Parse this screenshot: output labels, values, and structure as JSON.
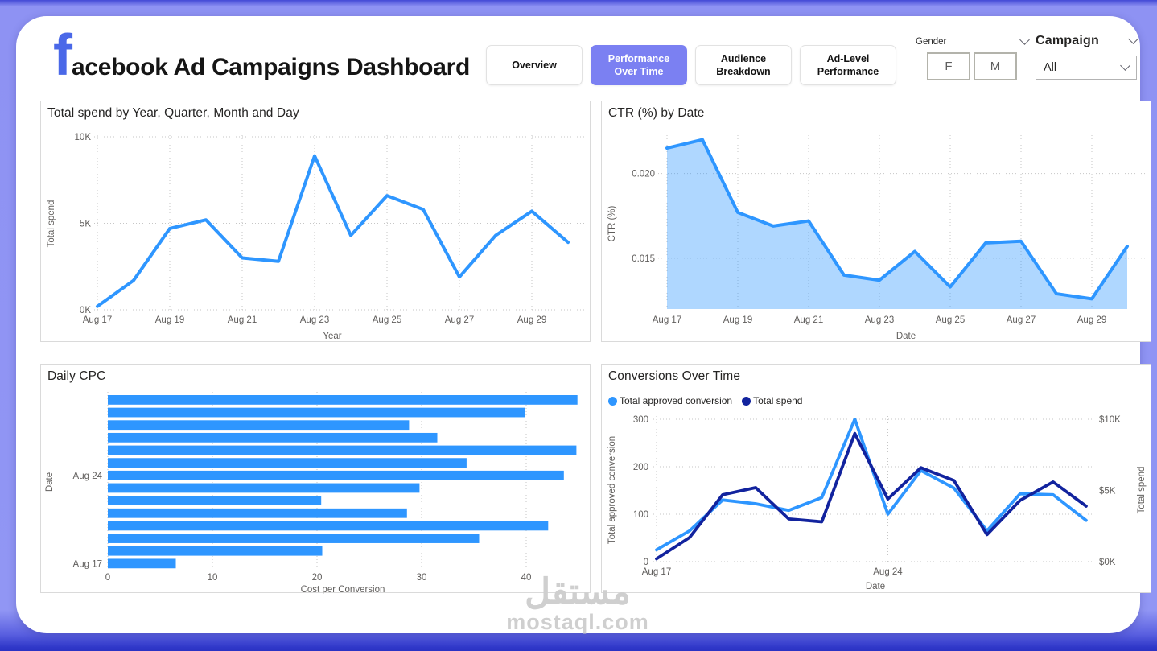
{
  "header": {
    "logo_letter": "f",
    "title": "acebook Ad Campaigns Dashboard",
    "nav": [
      {
        "label": "Overview",
        "active": false
      },
      {
        "label": "Performance Over Time",
        "active": true
      },
      {
        "label": "Audience Breakdown",
        "active": false
      },
      {
        "label": "Ad-Level Performance",
        "active": false
      }
    ],
    "filters": {
      "gender": {
        "label": "Gender",
        "options": [
          "F",
          "M"
        ]
      },
      "campaign": {
        "label": "Campaign",
        "value": "All"
      }
    }
  },
  "colors": {
    "accent_purple": "#7B80F2",
    "primary_blue": "#2E96FF",
    "secondary_navy": "#12239E",
    "logo_blue": "#4A68E8",
    "area_fill": "#A8D4FF"
  },
  "watermark": {
    "arabic": "مستقل",
    "latin": "mostaql.com"
  },
  "chart_data": [
    {
      "id": "total-spend-by-day",
      "type": "line",
      "title": "Total spend by Year, Quarter, Month and Day",
      "xlabel": "Year",
      "ylabel": "Total spend",
      "categories": [
        "Aug 17",
        "Aug 18",
        "Aug 19",
        "Aug 20",
        "Aug 21",
        "Aug 22",
        "Aug 23",
        "Aug 24",
        "Aug 25",
        "Aug 26",
        "Aug 27",
        "Aug 28",
        "Aug 29",
        "Aug 30"
      ],
      "values_k": [
        0.2,
        1.7,
        4.7,
        5.2,
        3.0,
        2.8,
        8.9,
        4.3,
        6.6,
        5.8,
        1.9,
        4.3,
        5.7,
        3.9
      ],
      "ylim_k": [
        0,
        10
      ],
      "y_ticks": [
        {
          "v": 0,
          "label": "0K"
        },
        {
          "v": 5,
          "label": "5K"
        },
        {
          "v": 10,
          "label": "10K"
        }
      ],
      "x_ticks_every": 2,
      "line_color": "#2E96FF",
      "grid": true,
      "legend_position": "none"
    },
    {
      "id": "ctr-by-date",
      "type": "area",
      "title": "CTR (%) by Date",
      "xlabel": "Date",
      "ylabel": "CTR (%)",
      "categories": [
        "Aug 17",
        "Aug 18",
        "Aug 19",
        "Aug 20",
        "Aug 21",
        "Aug 22",
        "Aug 23",
        "Aug 24",
        "Aug 25",
        "Aug 26",
        "Aug 27",
        "Aug 28",
        "Aug 29",
        "Aug 30"
      ],
      "values": [
        0.0215,
        0.022,
        0.0177,
        0.0169,
        0.0172,
        0.014,
        0.0137,
        0.0154,
        0.0133,
        0.0159,
        0.016,
        0.0129,
        0.0126,
        0.0157
      ],
      "ylim": [
        0.012,
        0.0225
      ],
      "y_ticks": [
        {
          "v": 0.015,
          "label": "0.015"
        },
        {
          "v": 0.02,
          "label": "0.020"
        }
      ],
      "x_ticks_every": 2,
      "line_color": "#2E96FF",
      "fill_color": "#2E96FF",
      "fill_opacity": 0.38,
      "grid": true,
      "legend_position": "none"
    },
    {
      "id": "daily-cpc",
      "type": "bar",
      "orientation": "horizontal",
      "title": "Daily CPC",
      "xlabel": "Cost per Conversion",
      "ylabel": "Date",
      "categories_top_to_bottom": [
        "Aug 30",
        "Aug 29",
        "Aug 28",
        "Aug 27",
        "Aug 26",
        "Aug 25",
        "Aug 24",
        "Aug 23",
        "Aug 22",
        "Aug 21",
        "Aug 20",
        "Aug 19",
        "Aug 18",
        "Aug 17"
      ],
      "values": [
        44.9,
        39.9,
        28.8,
        31.5,
        44.8,
        34.3,
        43.6,
        29.8,
        20.4,
        28.6,
        42.1,
        35.5,
        20.5,
        6.5
      ],
      "xlim": [
        0,
        45.5
      ],
      "x_ticks": [
        {
          "v": 0,
          "label": "0"
        },
        {
          "v": 10,
          "label": "10"
        },
        {
          "v": 20,
          "label": "20"
        },
        {
          "v": 30,
          "label": "30"
        },
        {
          "v": 40,
          "label": "40"
        }
      ],
      "visible_y_tick_labels": [
        {
          "row_index": 6,
          "label": "Aug 24"
        },
        {
          "row_index": 13,
          "label": "Aug 17"
        }
      ],
      "bar_color": "#2E96FF",
      "grid": true,
      "legend_position": "none"
    },
    {
      "id": "conversions-over-time",
      "type": "line",
      "dual_axis": true,
      "title": "Conversions Over Time",
      "xlabel": "Date",
      "ylabel_left": "Total approved conversion",
      "ylabel_right": "Total spend",
      "categories": [
        "Aug 17",
        "Aug 18",
        "Aug 19",
        "Aug 20",
        "Aug 21",
        "Aug 22",
        "Aug 23",
        "Aug 24",
        "Aug 25",
        "Aug 26",
        "Aug 27",
        "Aug 28",
        "Aug 29",
        "Aug 30"
      ],
      "series": [
        {
          "name": "Total approved conversion",
          "axis": "left",
          "color": "#2E96FF",
          "values": [
            25,
            65,
            130,
            122,
            108,
            135,
            300,
            100,
            192,
            155,
            65,
            143,
            141,
            87
          ]
        },
        {
          "name": "Total spend",
          "axis": "right",
          "color": "#12239E",
          "values_k": [
            0.2,
            1.7,
            4.7,
            5.2,
            3.0,
            2.8,
            9.0,
            4.4,
            6.6,
            5.7,
            1.9,
            4.3,
            5.6,
            3.9
          ]
        }
      ],
      "left_ylim": [
        0,
        300
      ],
      "left_ticks": [
        {
          "v": 0,
          "label": "0"
        },
        {
          "v": 100,
          "label": "100"
        },
        {
          "v": 200,
          "label": "200"
        },
        {
          "v": 300,
          "label": "300"
        }
      ],
      "right_ylim_k": [
        0,
        10
      ],
      "right_ticks": [
        {
          "v": 0,
          "label": "$0K"
        },
        {
          "v": 5,
          "label": "$5K"
        },
        {
          "v": 10,
          "label": "$10K"
        }
      ],
      "visible_x_tick_labels": [
        {
          "index": 0,
          "label": "Aug 17"
        },
        {
          "index": 7,
          "label": "Aug 24"
        }
      ],
      "grid": true,
      "legend_position": "top-left"
    }
  ]
}
